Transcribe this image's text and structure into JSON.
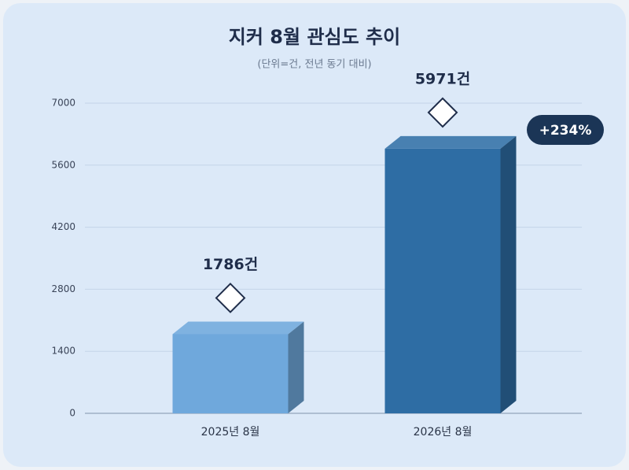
{
  "chart_data": {
    "type": "bar3d",
    "title": "지커 8월 관심도 추이",
    "subtitle": "(단위=건, 전년 동기 대비)",
    "categories": [
      "2025년 8월",
      "2026년 8월"
    ],
    "values": [
      1786,
      5971
    ],
    "value_labels": [
      "1786건",
      "5971건"
    ],
    "colors": [
      "#6fa8dc",
      "#2e6da4"
    ],
    "ylim": [
      0,
      7000
    ],
    "yticks": [
      0,
      1400,
      2800,
      4200,
      5600,
      7000
    ],
    "grid": true,
    "annotations": [
      "+234%"
    ]
  }
}
